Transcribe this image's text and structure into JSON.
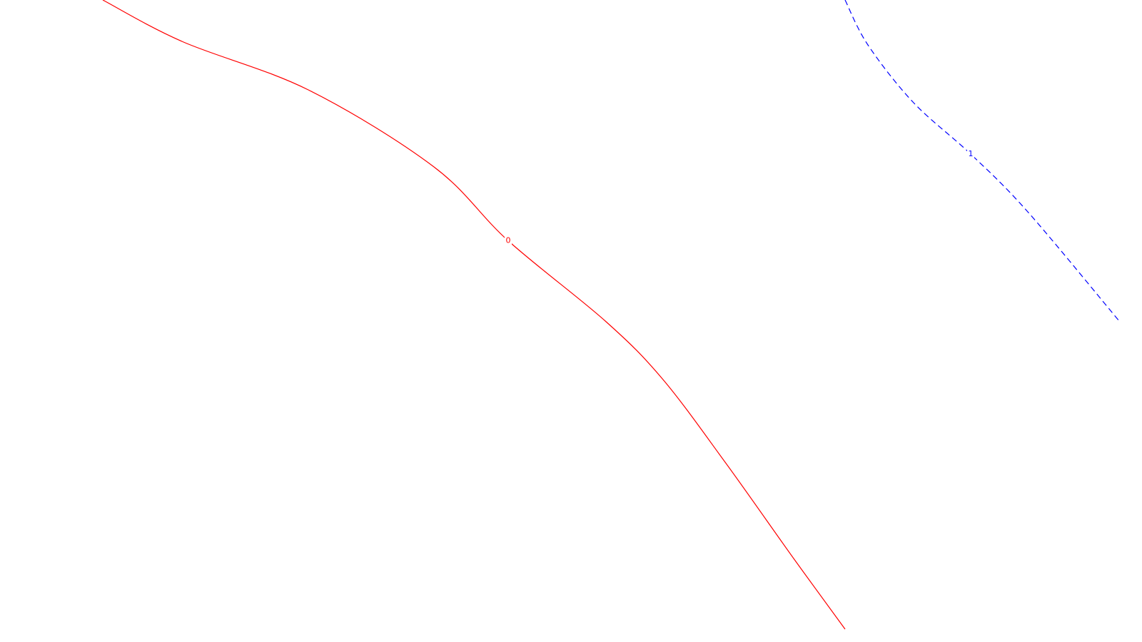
{
  "chart_data": {
    "type": "line",
    "title": "",
    "xlabel": "",
    "ylabel": "",
    "grid": false,
    "legend": "none",
    "series": [
      {
        "label": "0",
        "color": "#ff0000",
        "dashed": false,
        "points": [
          [
            0.09,
            0.0
          ],
          [
            0.16,
            0.065
          ],
          [
            0.27,
            0.14
          ],
          [
            0.38,
            0.26
          ],
          [
            0.445,
            0.375
          ],
          [
            0.53,
            0.5
          ],
          [
            0.58,
            0.59
          ],
          [
            0.635,
            0.72
          ],
          [
            0.695,
            0.87
          ],
          [
            0.74,
            0.98
          ]
        ],
        "label_at": [
          0.445,
          0.375
        ]
      },
      {
        "label": "1",
        "color": "#0000ff",
        "dashed": true,
        "points": [
          [
            0.74,
            0.0
          ],
          [
            0.76,
            0.07
          ],
          [
            0.8,
            0.16
          ],
          [
            0.85,
            0.24
          ],
          [
            0.9,
            0.33
          ],
          [
            0.98,
            0.5
          ]
        ],
        "label_at": [
          0.85,
          0.24
        ]
      }
    ]
  }
}
